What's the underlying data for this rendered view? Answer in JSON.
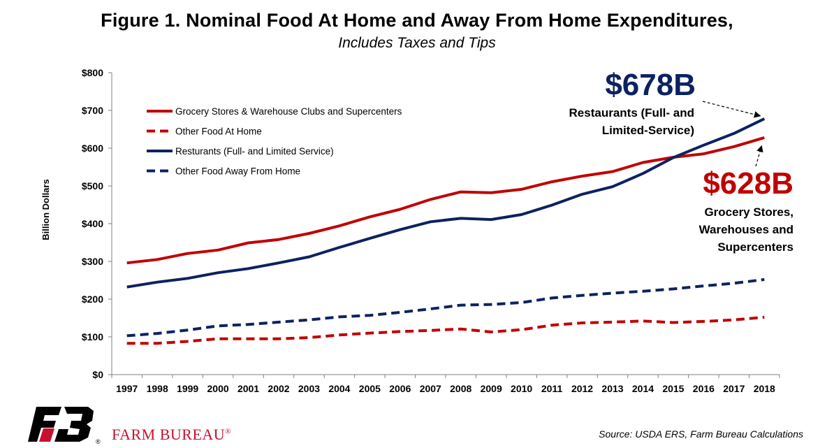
{
  "chart_data": {
    "type": "line",
    "title": "Figure 1. Nominal Food At Home and Away From Home Expenditures,",
    "subtitle": "Includes Taxes and Tips",
    "ylabel": "Billion Dollars",
    "xlabel": "",
    "ylim": [
      0,
      800
    ],
    "yticks": [
      0,
      100,
      200,
      300,
      400,
      500,
      600,
      700,
      800
    ],
    "ytick_labels": [
      "$0",
      "$100",
      "$200",
      "$300",
      "$400",
      "$500",
      "$600",
      "$700",
      "$800"
    ],
    "categories": [
      "1997",
      "1998",
      "1999",
      "2000",
      "2001",
      "2002",
      "2003",
      "2004",
      "2005",
      "2006",
      "2007",
      "2008",
      "2009",
      "2010",
      "2011",
      "2012",
      "2013",
      "2014",
      "2015",
      "2016",
      "2017",
      "2018"
    ],
    "grid": false,
    "legend_position": "top-left",
    "series": [
      {
        "name": "Grocery Stores & Warehouse Clubs and Supercenters",
        "color": "#c00000",
        "style": "solid",
        "values": [
          296,
          305,
          321,
          330,
          349,
          358,
          374,
          394,
          418,
          438,
          464,
          484,
          482,
          491,
          511,
          526,
          538,
          562,
          576,
          585,
          604,
          628
        ]
      },
      {
        "name": "Other Food At Home",
        "color": "#c00000",
        "style": "dashed",
        "values": [
          83,
          83,
          88,
          95,
          95,
          95,
          98,
          105,
          110,
          114,
          117,
          121,
          113,
          119,
          131,
          137,
          139,
          142,
          138,
          141,
          145,
          152
        ]
      },
      {
        "name": "Resturants (Full- and Limited Service)",
        "color": "#0c2260",
        "style": "solid",
        "values": [
          232,
          245,
          255,
          270,
          281,
          296,
          312,
          337,
          361,
          384,
          405,
          414,
          411,
          424,
          449,
          478,
          498,
          533,
          575,
          608,
          639,
          678
        ]
      },
      {
        "name": "Other Food Away From Home",
        "color": "#0c2260",
        "style": "dashed",
        "values": [
          103,
          109,
          118,
          129,
          133,
          139,
          145,
          153,
          157,
          165,
          174,
          184,
          186,
          191,
          203,
          210,
          216,
          221,
          227,
          235,
          242,
          252
        ]
      }
    ],
    "annotations": [
      {
        "value_label": "$678B",
        "text_lines": [
          "Restaurants (Full- and",
          "Limited-Service)"
        ],
        "color": "#0c2260",
        "target_series": 2,
        "target_year": "2018"
      },
      {
        "value_label": "$628B",
        "text_lines": [
          "Grocery Stores,",
          "Warehouses and",
          "Supercenters"
        ],
        "color": "#c00000",
        "target_series": 0,
        "target_year": "2018"
      }
    ]
  },
  "footer": {
    "brand": "FARM BUREAU",
    "brand_mark": "®",
    "logo_mark": "®",
    "source": "Source: USDA ERS, Farm Bureau Calculations"
  }
}
